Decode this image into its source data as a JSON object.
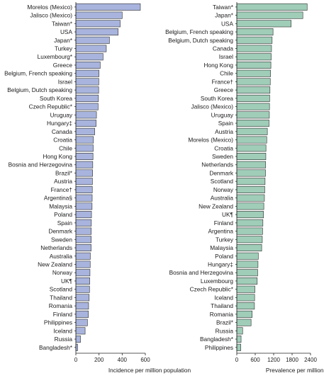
{
  "chart_data": [
    {
      "type": "bar",
      "orientation": "horizontal",
      "xlabel": "Incidence per million population",
      "xlim": [
        0,
        600
      ],
      "xticks": [
        0,
        200,
        400,
        600
      ],
      "categories": [
        "Morelos (Mexico)",
        "Jalisco (Mexico)",
        "Taiwan*",
        "USA",
        "Japan*",
        "Turkey",
        "Luxembourg*",
        "Greece",
        "Belgium, French speaking",
        "Israel",
        "Belgium, Dutch speaking",
        "South Korea",
        "Czech Republic*",
        "Uruguay",
        "Hungary‡",
        "Canada",
        "Croatia",
        "Chile",
        "Hong Kong",
        "Bosnia and Herzegovina",
        "Brazil*",
        "Austria",
        "France†",
        "Argentina§",
        "Malaysia",
        "Poland",
        "Spain",
        "Denmark",
        "Sweden",
        "Netherlands",
        "Australia",
        "New Zealand",
        "Norway",
        "UK¶",
        "Scotland",
        "Thailand",
        "Romania",
        "Finland",
        "Philippines",
        "Iceland",
        "Russia",
        "Bangladesh*"
      ],
      "values": [
        557,
        400,
        383,
        365,
        290,
        263,
        235,
        210,
        200,
        198,
        197,
        195,
        192,
        178,
        175,
        163,
        152,
        150,
        148,
        146,
        145,
        143,
        142,
        141,
        140,
        135,
        134,
        133,
        133,
        132,
        125,
        124,
        122,
        120,
        118,
        115,
        110,
        108,
        100,
        80,
        40,
        15
      ]
    },
    {
      "type": "bar",
      "orientation": "horizontal",
      "xlabel": "Prevalence per million population",
      "xlim": [
        0,
        2400
      ],
      "xticks": [
        0,
        600,
        1200,
        1800,
        2400
      ],
      "categories": [
        "Taiwan*",
        "Japan*",
        "USA",
        "Belgium, French speaking",
        "Belgium, Dutch speaking",
        "Canada",
        "Israel",
        "Hong Kong",
        "Chile",
        "France†",
        "Greece",
        "South Korea",
        "Jalisco (Mexico)",
        "Uruguay",
        "Spain",
        "Austria",
        "Morelos (Mexico)",
        "Croatia",
        "Sweden",
        "Netherlands",
        "Denmark",
        "Scotland",
        "Norway",
        "Australia",
        "New Zealand",
        "UK¶",
        "Finland",
        "Argentina",
        "Turkey",
        "Malaysia",
        "Poland",
        "Hungary‡",
        "Bosnia and Herzegovina",
        "Luxembourg",
        "Czech Republic*",
        "Iceland",
        "Thailand",
        "Romania",
        "Brazil*",
        "Russia",
        "Bangladesh*",
        "Philippines"
      ],
      "values": [
        2290,
        2150,
        1770,
        1180,
        1150,
        1130,
        1120,
        1110,
        1100,
        1090,
        1080,
        1070,
        1065,
        1060,
        1050,
        995,
        975,
        950,
        945,
        940,
        935,
        920,
        910,
        900,
        880,
        870,
        850,
        840,
        830,
        810,
        700,
        690,
        680,
        665,
        590,
        580,
        575,
        500,
        465,
        190,
        140,
        130
      ]
    }
  ]
}
